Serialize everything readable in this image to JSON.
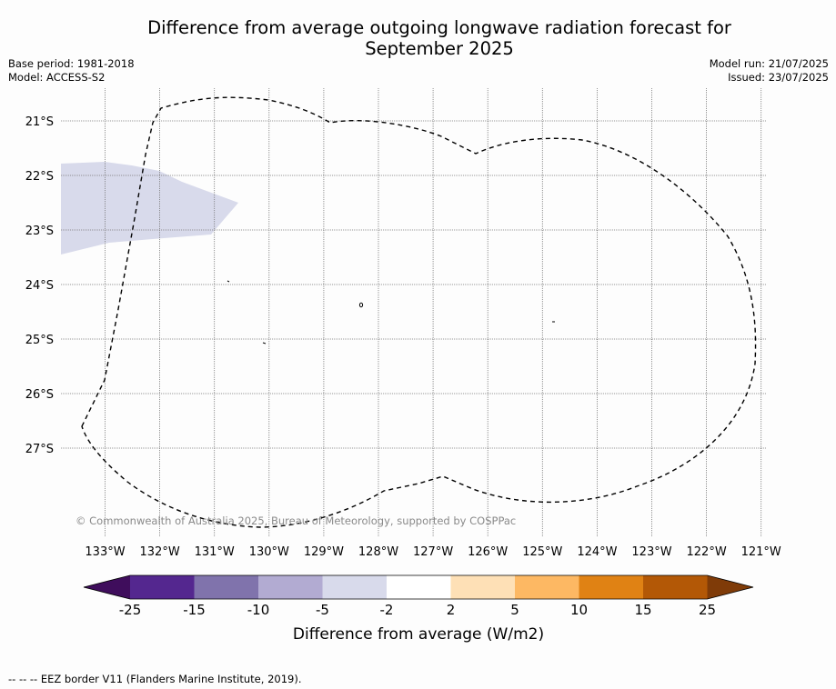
{
  "title_line1": "Difference from average outgoing longwave radiation forecast for",
  "title_line2": "September 2025",
  "base_period": "Base period: 1981-2018",
  "model": "Model: ACCESS-S2",
  "model_run": "Model run: 21/07/2025",
  "issued": "Issued: 23/07/2025",
  "copyright": "© Commonwealth of Australia 2025, Bureau of Meteorology, supported by COSPPac",
  "lat_labels": [
    "21°S",
    "22°S",
    "23°S",
    "24°S",
    "25°S",
    "26°S",
    "27°S"
  ],
  "lon_labels": [
    "133°W",
    "132°W",
    "131°W",
    "130°W",
    "129°W",
    "128°W",
    "127°W",
    "126°W",
    "125°W",
    "124°W",
    "123°W",
    "122°W",
    "121°W"
  ],
  "colorbar": {
    "ticks": [
      "-25",
      "-15",
      "-10",
      "-5",
      "-2",
      "2",
      "5",
      "10",
      "15",
      "25"
    ],
    "colors": [
      "#3f0d5c",
      "#54278f",
      "#8073ac",
      "#b2abd2",
      "#d8daeb",
      "#ffffff",
      "#fee0b6",
      "#fdb863",
      "#e08214",
      "#b35806",
      "#7f3b08"
    ],
    "label": "Difference from average (W/m2)"
  },
  "shaded_region_color": "#d8daeb",
  "legend_footer": "--  --  -- EEZ border V11 (Flanders Marine Institute, 2019)."
}
